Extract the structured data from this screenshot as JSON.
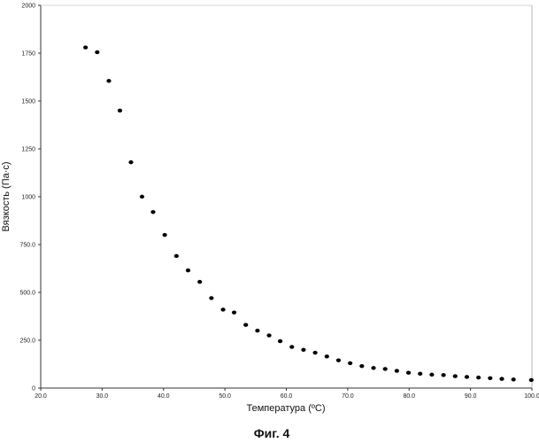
{
  "chart_data": {
    "type": "scatter",
    "title": "",
    "caption": "Фиг. 4",
    "xlabel": "Температура (ºC)",
    "ylabel": "Вязкость (Па·с)",
    "xlim": [
      20,
      100
    ],
    "ylim": [
      0,
      2000
    ],
    "x_ticks": [
      20,
      30,
      40,
      50,
      60,
      70,
      80,
      90,
      100
    ],
    "x_tick_labels": [
      "20.0",
      "30.0",
      "40.0",
      "50.0",
      "60.0",
      "70.0",
      "80.0",
      "90.0",
      "100.0"
    ],
    "y_ticks": [
      0,
      250,
      500,
      750,
      1000,
      1250,
      1500,
      1750,
      2000
    ],
    "y_tick_labels": [
      "0",
      "250.0",
      "500.0",
      "750.0",
      "1000",
      "1250",
      "1500",
      "1750",
      "2000"
    ],
    "grid": false,
    "series": [
      {
        "name": "Вязкость",
        "color": "#000000",
        "x": [
          27.3,
          29.2,
          31.1,
          32.9,
          34.7,
          36.5,
          38.3,
          40.2,
          42.1,
          44.0,
          45.9,
          47.8,
          49.7,
          51.5,
          53.4,
          55.3,
          57.2,
          59.0,
          60.9,
          62.8,
          64.7,
          66.6,
          68.5,
          70.4,
          72.3,
          74.2,
          76.1,
          78.0,
          79.9,
          81.8,
          83.7,
          85.6,
          87.5,
          89.4,
          91.3,
          93.2,
          95.1,
          97.0,
          99.9
        ],
        "y": [
          1780,
          1755,
          1605,
          1450,
          1180,
          1000,
          920,
          800,
          690,
          615,
          555,
          470,
          410,
          395,
          330,
          300,
          275,
          245,
          215,
          200,
          185,
          165,
          145,
          130,
          115,
          105,
          100,
          90,
          80,
          75,
          70,
          68,
          62,
          58,
          55,
          52,
          48,
          45,
          42
        ]
      }
    ]
  }
}
